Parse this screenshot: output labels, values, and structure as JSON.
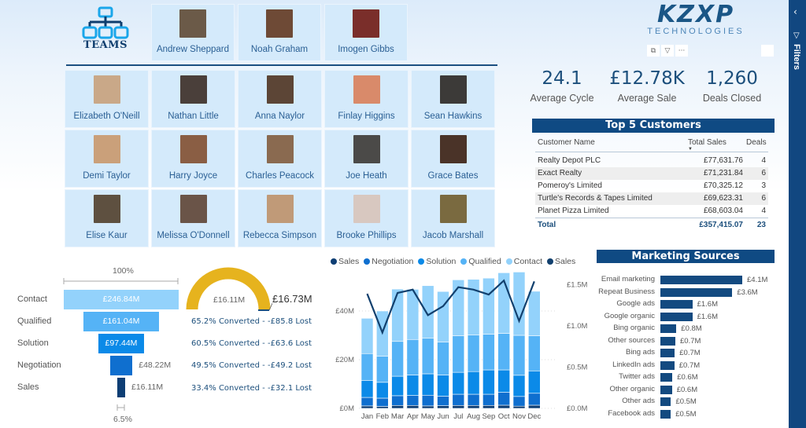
{
  "teams": {
    "label": "TEAMS",
    "leaders": [
      {
        "name": "Andrew Sheppard",
        "photo_color": "#6b5a48"
      },
      {
        "name": "Noah Graham",
        "photo_color": "#6e4a36"
      },
      {
        "name": "Imogen Gibbs",
        "photo_color": "#7a2e2a"
      }
    ],
    "members": [
      {
        "name": "Elizabeth O'Neill",
        "photo_color": "#c9a888"
      },
      {
        "name": "Nathan Little",
        "photo_color": "#4a3f3a"
      },
      {
        "name": "Anna Naylor",
        "photo_color": "#5c4536"
      },
      {
        "name": "Finlay Higgins",
        "photo_color": "#d98a6a"
      },
      {
        "name": "Sean Hawkins",
        "photo_color": "#3c3a38"
      },
      {
        "name": "Demi Taylor",
        "photo_color": "#caa07a"
      },
      {
        "name": "Harry Joyce",
        "photo_color": "#8a5e44"
      },
      {
        "name": "Charles Peacock",
        "photo_color": "#8a6a50"
      },
      {
        "name": "Joe Heath",
        "photo_color": "#4b4a48"
      },
      {
        "name": "Grace Bates",
        "photo_color": "#4a3328"
      },
      {
        "name": "Elise Kaur",
        "photo_color": "#5e5040"
      },
      {
        "name": "Melissa O'Donnell",
        "photo_color": "#6a5448"
      },
      {
        "name": "Rebecca Simpson",
        "photo_color": "#c09a78"
      },
      {
        "name": "Brooke Phillips",
        "photo_color": "#d8c8c0"
      },
      {
        "name": "Jacob Marshall",
        "photo_color": "#7a6a40"
      }
    ]
  },
  "brand": {
    "name": "KZXP",
    "subtitle": "TECHNOLOGIES",
    "visual_tools": [
      "copy-icon",
      "filter-icon",
      "more-options-icon"
    ],
    "visual_tool_glyphs": [
      "⧉",
      "▽",
      "···"
    ]
  },
  "kpis": [
    {
      "value": "24.1",
      "label": "Average Cycle"
    },
    {
      "value": "£12.78K",
      "label": "Average Sale"
    },
    {
      "value": "1,260",
      "label": "Deals Closed"
    }
  ],
  "top_customers": {
    "title": "Top 5 Customers",
    "columns": [
      "Customer Name",
      "Total Sales",
      "Deals"
    ],
    "rows": [
      {
        "name": "Realty Depot PLC",
        "sales": "£77,631.76",
        "deals": "4"
      },
      {
        "name": "Exact Realty",
        "sales": "£71,231.84",
        "deals": "6"
      },
      {
        "name": "Pomeroy's Limited",
        "sales": "£70,325.12",
        "deals": "3"
      },
      {
        "name": "Turtle's Records & Tapes Limited",
        "sales": "£69,623.31",
        "deals": "6"
      },
      {
        "name": "Planet Pizza Limited",
        "sales": "£68,603.04",
        "deals": "4"
      }
    ],
    "total": {
      "label": "Total",
      "sales": "£357,415.07",
      "deals": "23"
    }
  },
  "funnel": {
    "top_pct": "100%",
    "bottom_pct": "6.5%",
    "stages": [
      {
        "label": "Contact",
        "value": "£246.84M",
        "color": "#93d2fb",
        "inside": true
      },
      {
        "label": "Qualified",
        "value": "£161.04M",
        "color": "#55b3f6",
        "inside": true
      },
      {
        "label": "Solution",
        "value": "£97.44M",
        "color": "#0b8ae8",
        "inside": true
      },
      {
        "label": "Negotiation",
        "value": "£48.22M",
        "color": "#0f6fcf",
        "inside": false
      },
      {
        "label": "Sales",
        "value": "£16.11M",
        "color": "#0e3e74",
        "inside": false
      }
    ]
  },
  "gauge": {
    "value": "£16.11M",
    "target": "£16.73M",
    "color": "#e6b31e"
  },
  "conversions": [
    "65.2% Converted - -£85.8 Lost",
    "60.5% Converted - -£63.6 Lost",
    "49.5% Converted - -£49.2 Lost",
    "33.4% Converted - -£32.1 Lost"
  ],
  "chart_data": {
    "type": "bar",
    "title": "",
    "categories": [
      "Jan",
      "Feb",
      "Mar",
      "Apr",
      "May",
      "Jun",
      "Jul",
      "Aug",
      "Sep",
      "Oct",
      "Nov",
      "Dec"
    ],
    "legend": [
      "Sales",
      "Negotiation",
      "Solution",
      "Qualified",
      "Contact",
      "Sales"
    ],
    "legend_colors": [
      "#0e3e74",
      "#0f6fcf",
      "#0b8ae8",
      "#55b3f6",
      "#93d2fb",
      "#12406e"
    ],
    "series": [
      {
        "name": "Sales",
        "type": "stacked-bar",
        "color": "#0e3e74",
        "values": [
          1.0,
          0.8,
          1.2,
          1.2,
          1.0,
          1.1,
          1.2,
          1.2,
          1.2,
          1.3,
          0.9,
          1.3
        ]
      },
      {
        "name": "Negotiation",
        "type": "stacked-bar",
        "color": "#0f6fcf",
        "values": [
          3.5,
          3.4,
          4.0,
          4.1,
          4.4,
          3.9,
          4.6,
          4.6,
          4.6,
          5.3,
          4.0,
          4.9
        ]
      },
      {
        "name": "Solution",
        "type": "stacked-bar",
        "color": "#0b8ae8",
        "values": [
          7.0,
          6.5,
          8.0,
          8.4,
          8.8,
          8.7,
          9.0,
          9.3,
          10.0,
          9.2,
          8.7,
          9.2
        ]
      },
      {
        "name": "Qualified",
        "type": "stacked-bar",
        "color": "#55b3f6",
        "values": [
          11.0,
          10.7,
          14.3,
          14.6,
          14.6,
          13.6,
          15.0,
          15.0,
          14.7,
          15.0,
          16.4,
          14.4
        ]
      },
      {
        "name": "Contact",
        "type": "stacked-bar",
        "color": "#93d2fb",
        "values": [
          14.5,
          18.6,
          21.5,
          20.6,
          21.6,
          20.7,
          23.0,
          22.9,
          23.0,
          24.9,
          26.0,
          18.3
        ]
      },
      {
        "name": "Sales",
        "type": "line",
        "axis": "right",
        "color": "#12406e",
        "values": [
          1.39,
          0.92,
          1.4,
          1.44,
          1.13,
          1.24,
          1.47,
          1.44,
          1.38,
          1.55,
          1.06,
          1.54
        ]
      }
    ],
    "y_left": {
      "ticks": [
        "£0M",
        "£20M",
        "£40M"
      ],
      "range": [
        0,
        52
      ]
    },
    "y_right": {
      "ticks": [
        "£0.0M",
        "£0.5M",
        "£1.0M",
        "£1.5M"
      ],
      "range": [
        0,
        1.6
      ]
    },
    "xlabel": "",
    "ylabel": ""
  },
  "marketing": {
    "title": "Marketing Sources",
    "items": [
      {
        "label": "Email marketing",
        "value": "£4.1M",
        "num": 4.1
      },
      {
        "label": "Repeat Business",
        "value": "£3.6M",
        "num": 3.6
      },
      {
        "label": "Google ads",
        "value": "£1.6M",
        "num": 1.6
      },
      {
        "label": "Google organic",
        "value": "£1.6M",
        "num": 1.6
      },
      {
        "label": "Bing organic",
        "value": "£0.8M",
        "num": 0.8
      },
      {
        "label": "Other sources",
        "value": "£0.7M",
        "num": 0.75
      },
      {
        "label": "Bing ads",
        "value": "£0.7M",
        "num": 0.72
      },
      {
        "label": "LinkedIn ads",
        "value": "£0.7M",
        "num": 0.7
      },
      {
        "label": "Twitter ads",
        "value": "£0.6M",
        "num": 0.6
      },
      {
        "label": "Other organic",
        "value": "£0.6M",
        "num": 0.58
      },
      {
        "label": "Other ads",
        "value": "£0.5M",
        "num": 0.53
      },
      {
        "label": "Facebook ads",
        "value": "£0.5M",
        "num": 0.52
      }
    ]
  },
  "filters_pane": {
    "label": "Filters",
    "collapse_glyph": "‹",
    "filter_glyph": "▽"
  }
}
